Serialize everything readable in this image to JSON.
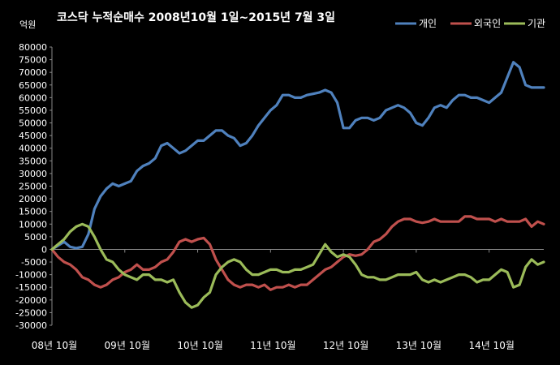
{
  "chart_data": {
    "type": "line",
    "title": "코스닥  누적순매수 2008년10월 1일~2015년 7월 3일",
    "ylabel": "억원",
    "ylim": [
      -30000,
      80000
    ],
    "yticks": [
      80000,
      75000,
      70000,
      65000,
      60000,
      55000,
      50000,
      45000,
      40000,
      35000,
      30000,
      25000,
      20000,
      15000,
      10000,
      5000,
      0,
      -5000,
      -10000,
      -15000,
      -20000,
      -25000,
      -30000
    ],
    "ytick_labels": [
      "80000",
      "75000",
      "70000",
      "65000",
      "60000",
      "55000",
      "50000",
      "45000",
      "40000",
      "35000",
      "30000",
      "25000",
      "20000",
      "15000",
      "10000",
      "5000",
      "0",
      "-5000",
      "-10000",
      "-15000",
      "-20000",
      "-25000",
      "-30000"
    ],
    "xlim": [
      0,
      81
    ],
    "xticks": [
      0,
      12,
      24,
      36,
      48,
      60,
      72
    ],
    "xtick_labels": [
      "08년 10월",
      "09년 10월",
      "10년 10월",
      "11년 10월",
      "12년 10월",
      "13년 10월",
      "14년 10월"
    ],
    "grid": false,
    "legend": "top-right",
    "series": [
      {
        "name": "개인",
        "color": "#4f81bd",
        "x": [
          0,
          1,
          2,
          3,
          4,
          5,
          6,
          7,
          8,
          9,
          10,
          11,
          12,
          13,
          14,
          15,
          16,
          17,
          18,
          19,
          20,
          21,
          22,
          23,
          24,
          25,
          26,
          27,
          28,
          29,
          30,
          31,
          32,
          33,
          34,
          35,
          36,
          37,
          38,
          39,
          40,
          41,
          42,
          43,
          44,
          45,
          46,
          47,
          48,
          49,
          50,
          51,
          52,
          53,
          54,
          55,
          56,
          57,
          58,
          59,
          60,
          61,
          62,
          63,
          64,
          65,
          66,
          67,
          68,
          69,
          70,
          71,
          72,
          73,
          74,
          75,
          76,
          77,
          78,
          79,
          80,
          81
        ],
        "y": [
          0,
          1500,
          3000,
          1000,
          500,
          1000,
          6000,
          16000,
          21000,
          24000,
          26000,
          25000,
          26000,
          27000,
          31000,
          33000,
          34000,
          36000,
          41000,
          42000,
          40000,
          38000,
          39000,
          41000,
          43000,
          43000,
          45000,
          47000,
          47000,
          45000,
          44000,
          41000,
          42000,
          45000,
          49000,
          52000,
          55000,
          57000,
          61000,
          61000,
          60000,
          60000,
          61000,
          61500,
          62000,
          63000,
          62000,
          58000,
          48000,
          48000,
          51000,
          52000,
          52000,
          51000,
          52000,
          55000,
          56000,
          57000,
          56000,
          54000,
          50000,
          49000,
          52000,
          56000,
          57000,
          56000,
          59000,
          61000,
          61000,
          60000,
          60000,
          59000,
          58000,
          60000,
          62000,
          68000,
          74000,
          72000,
          65000,
          64000,
          64000,
          64000
        ]
      },
      {
        "name": "외국인",
        "color": "#c0504d",
        "x": [
          0,
          1,
          2,
          3,
          4,
          5,
          6,
          7,
          8,
          9,
          10,
          11,
          12,
          13,
          14,
          15,
          16,
          17,
          18,
          19,
          20,
          21,
          22,
          23,
          24,
          25,
          26,
          27,
          28,
          29,
          30,
          31,
          32,
          33,
          34,
          35,
          36,
          37,
          38,
          39,
          40,
          41,
          42,
          43,
          44,
          45,
          46,
          47,
          48,
          49,
          50,
          51,
          52,
          53,
          54,
          55,
          56,
          57,
          58,
          59,
          60,
          61,
          62,
          63,
          64,
          65,
          66,
          67,
          68,
          69,
          70,
          71,
          72,
          73,
          74,
          75,
          76,
          77,
          78,
          79,
          80,
          81
        ],
        "y": [
          0,
          -3000,
          -5000,
          -6000,
          -8000,
          -11000,
          -12000,
          -14000,
          -15000,
          -14000,
          -12000,
          -11000,
          -9000,
          -8000,
          -6000,
          -8000,
          -8000,
          -7000,
          -5000,
          -4000,
          -1000,
          3000,
          4000,
          3000,
          4000,
          4500,
          2000,
          -4000,
          -8000,
          -12000,
          -14000,
          -15000,
          -14000,
          -14000,
          -15000,
          -14000,
          -16000,
          -15000,
          -15000,
          -14000,
          -15000,
          -14000,
          -14000,
          -12000,
          -10000,
          -8000,
          -7000,
          -5000,
          -3000,
          -2000,
          -2500,
          -2000,
          0,
          3000,
          4000,
          6000,
          9000,
          11000,
          12000,
          12000,
          11000,
          10500,
          11000,
          12000,
          11000,
          11000,
          11000,
          11000,
          13000,
          13000,
          12000,
          12000,
          12000,
          11000,
          12000,
          11000,
          11000,
          11000,
          12000,
          9000,
          11000,
          10000
        ]
      },
      {
        "name": "기관",
        "color": "#9bbb59",
        "x": [
          0,
          1,
          2,
          3,
          4,
          5,
          6,
          7,
          8,
          9,
          10,
          11,
          12,
          13,
          14,
          15,
          16,
          17,
          18,
          19,
          20,
          21,
          22,
          23,
          24,
          25,
          26,
          27,
          28,
          29,
          30,
          31,
          32,
          33,
          34,
          35,
          36,
          37,
          38,
          39,
          40,
          41,
          42,
          43,
          44,
          45,
          46,
          47,
          48,
          49,
          50,
          51,
          52,
          53,
          54,
          55,
          56,
          57,
          58,
          59,
          60,
          61,
          62,
          63,
          64,
          65,
          66,
          67,
          68,
          69,
          70,
          71,
          72,
          73,
          74,
          75,
          76,
          77,
          78,
          79,
          80,
          81
        ],
        "y": [
          0,
          2000,
          4000,
          7000,
          9000,
          10000,
          9000,
          5000,
          0,
          -4000,
          -5000,
          -8000,
          -10000,
          -11000,
          -12000,
          -10000,
          -10000,
          -12000,
          -12000,
          -13000,
          -12000,
          -17000,
          -21000,
          -23000,
          -22000,
          -19000,
          -17000,
          -10000,
          -7000,
          -5000,
          -4000,
          -5000,
          -8000,
          -10000,
          -10000,
          -9000,
          -8000,
          -8000,
          -9000,
          -9000,
          -8000,
          -8000,
          -7000,
          -6000,
          -2000,
          2000,
          -1000,
          -3000,
          -2000,
          -3000,
          -6000,
          -10000,
          -11000,
          -11000,
          -12000,
          -12000,
          -11000,
          -10000,
          -10000,
          -10000,
          -9000,
          -12000,
          -13000,
          -12000,
          -13000,
          -12000,
          -11000,
          -10000,
          -10000,
          -11000,
          -13000,
          -12000,
          -12000,
          -10000,
          -8000,
          -9000,
          -15000,
          -14000,
          -7000,
          -4000,
          -6000,
          -5000
        ]
      }
    ]
  }
}
